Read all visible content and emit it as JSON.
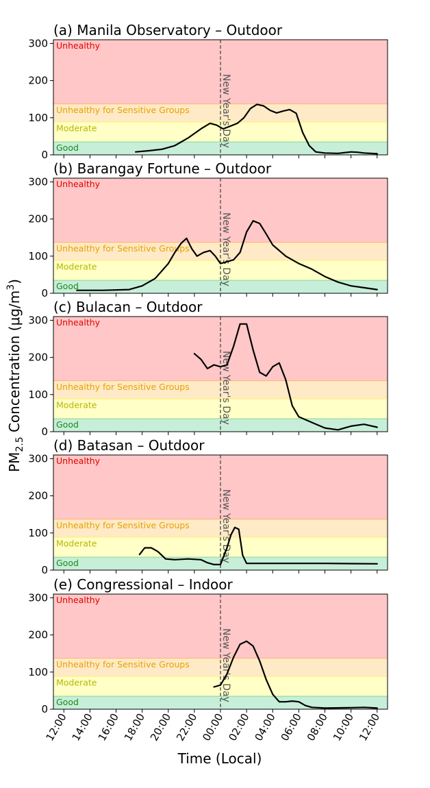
{
  "figure": {
    "ylabel_main": "PM",
    "ylabel_sub": "2.5",
    "ylabel_rest": " Concentration (μg/m",
    "ylabel_sup": "3",
    "ylabel_close": ")",
    "xlabel": "Time (Local)",
    "event_label": "New Year's Day",
    "band_colors": {
      "good": "#00b050",
      "moderate": "#ffff00",
      "usg": "#ffa000",
      "unhealthy": "#ff0000"
    },
    "band_label_colors": {
      "good": "#1a8a1a",
      "moderate": "#b8b800",
      "usg": "#e8a000",
      "unhealthy": "#e00000"
    }
  },
  "chart_data": [
    {
      "type": "line",
      "title": "(a) Manila Observatory – Outdoor",
      "x_unit": "hours since 12:00 (local)",
      "xlim": [
        -0.8,
        24.8
      ],
      "ylim": [
        0,
        310
      ],
      "yticks": [
        "0",
        "100",
        "200",
        "300"
      ],
      "xticks": [
        "12:00",
        "14:00",
        "16:00",
        "18:00",
        "20:00",
        "22:00",
        "00:00",
        "02:00",
        "04:00",
        "06:00",
        "08:00",
        "10:00",
        "12:00"
      ],
      "bands": [
        {
          "label": "Good",
          "from": 0,
          "to": 35
        },
        {
          "label": "Moderate",
          "from": 35,
          "to": 88
        },
        {
          "label": "Unhealthy for Sensitive Groups",
          "from": 88,
          "to": 137
        },
        {
          "label": "Unhealthy",
          "from": 137,
          "to": 310
        }
      ],
      "event_x": 12,
      "series": [
        {
          "points": [
            [
              5.5,
              8
            ],
            [
              6.5,
              11
            ],
            [
              7.5,
              15
            ],
            [
              8.5,
              25
            ],
            [
              9.5,
              45
            ],
            [
              10.5,
              70
            ],
            [
              11.2,
              85
            ],
            [
              11.7,
              80
            ],
            [
              12.2,
              70
            ],
            [
              12.8,
              78
            ],
            [
              13.3,
              85
            ],
            [
              13.8,
              100
            ],
            [
              14.3,
              125
            ],
            [
              14.8,
              136
            ],
            [
              15.3,
              132
            ],
            [
              15.8,
              120
            ],
            [
              16.3,
              113
            ],
            [
              16.8,
              118
            ],
            [
              17.3,
              122
            ],
            [
              17.8,
              112
            ],
            [
              18.3,
              60
            ],
            [
              18.8,
              25
            ],
            [
              19.3,
              8
            ],
            [
              20,
              5
            ],
            [
              21,
              4
            ],
            [
              22,
              8
            ],
            [
              22.5,
              7
            ],
            [
              23,
              5
            ],
            [
              24,
              3
            ]
          ]
        }
      ]
    },
    {
      "type": "line",
      "title": "(b) Barangay Fortune – Outdoor",
      "x_unit": "hours since 12:00 (local)",
      "xlim": [
        -0.8,
        24.8
      ],
      "ylim": [
        0,
        310
      ],
      "yticks": [
        "0",
        "100",
        "200",
        "300"
      ],
      "xticks": [
        "12:00",
        "14:00",
        "16:00",
        "18:00",
        "20:00",
        "22:00",
        "00:00",
        "02:00",
        "04:00",
        "06:00",
        "08:00",
        "10:00",
        "12:00"
      ],
      "bands": [
        {
          "label": "Good",
          "from": 0,
          "to": 35
        },
        {
          "label": "Moderate",
          "from": 35,
          "to": 88
        },
        {
          "label": "Unhealthy for Sensitive Groups",
          "from": 88,
          "to": 137
        },
        {
          "label": "Unhealthy",
          "from": 137,
          "to": 310
        }
      ],
      "event_x": 12,
      "series": [
        {
          "points": [
            [
              1,
              8
            ],
            [
              3,
              8
            ],
            [
              5,
              10
            ],
            [
              6,
              20
            ],
            [
              7,
              40
            ],
            [
              8,
              80
            ],
            [
              8.5,
              110
            ],
            [
              9,
              135
            ],
            [
              9.4,
              148
            ],
            [
              9.8,
              120
            ],
            [
              10.2,
              100
            ],
            [
              10.7,
              110
            ],
            [
              11.2,
              115
            ],
            [
              11.6,
              100
            ],
            [
              12,
              80
            ],
            [
              12.5,
              85
            ],
            [
              13,
              90
            ],
            [
              13.5,
              110
            ],
            [
              14,
              165
            ],
            [
              14.5,
              195
            ],
            [
              15,
              188
            ],
            [
              15.5,
              160
            ],
            [
              16,
              130
            ],
            [
              17,
              100
            ],
            [
              18,
              80
            ],
            [
              19,
              65
            ],
            [
              20,
              45
            ],
            [
              21,
              30
            ],
            [
              22,
              20
            ],
            [
              23,
              15
            ],
            [
              24,
              10
            ]
          ]
        }
      ]
    },
    {
      "type": "line",
      "title": "(c) Bulacan – Outdoor",
      "x_unit": "hours since 12:00 (local)",
      "xlim": [
        -0.8,
        24.8
      ],
      "ylim": [
        0,
        310
      ],
      "yticks": [
        "0",
        "100",
        "200",
        "300"
      ],
      "xticks": [
        "12:00",
        "14:00",
        "16:00",
        "18:00",
        "20:00",
        "22:00",
        "00:00",
        "02:00",
        "04:00",
        "06:00",
        "08:00",
        "10:00",
        "12:00"
      ],
      "bands": [
        {
          "label": "Good",
          "from": 0,
          "to": 35
        },
        {
          "label": "Moderate",
          "from": 35,
          "to": 88
        },
        {
          "label": "Unhealthy for Sensitive Groups",
          "from": 88,
          "to": 137
        },
        {
          "label": "Unhealthy",
          "from": 137,
          "to": 310
        }
      ],
      "event_x": 12,
      "series": [
        {
          "points": [
            [
              10,
              210
            ],
            [
              10.5,
              195
            ],
            [
              11,
              170
            ],
            [
              11.5,
              180
            ],
            [
              12,
              175
            ],
            [
              12.5,
              180
            ],
            [
              13,
              230
            ],
            [
              13.5,
              290
            ],
            [
              14,
              290
            ],
            [
              14.5,
              220
            ],
            [
              15,
              160
            ],
            [
              15.5,
              150
            ],
            [
              16,
              175
            ],
            [
              16.5,
              185
            ],
            [
              17,
              140
            ],
            [
              17.5,
              70
            ],
            [
              18,
              40
            ],
            [
              19,
              25
            ],
            [
              20,
              10
            ],
            [
              21,
              5
            ],
            [
              22,
              15
            ],
            [
              23,
              20
            ],
            [
              24,
              12
            ]
          ]
        }
      ]
    },
    {
      "type": "line",
      "title": "(d) Batasan – Outdoor",
      "x_unit": "hours since 12:00 (local)",
      "xlim": [
        -0.8,
        24.8
      ],
      "ylim": [
        0,
        310
      ],
      "yticks": [
        "0",
        "100",
        "200",
        "300"
      ],
      "xticks": [
        "12:00",
        "14:00",
        "16:00",
        "18:00",
        "20:00",
        "22:00",
        "00:00",
        "02:00",
        "04:00",
        "06:00",
        "08:00",
        "10:00",
        "12:00"
      ],
      "bands": [
        {
          "label": "Good",
          "from": 0,
          "to": 35
        },
        {
          "label": "Moderate",
          "from": 35,
          "to": 88
        },
        {
          "label": "Unhealthy for Sensitive Groups",
          "from": 88,
          "to": 137
        },
        {
          "label": "Unhealthy",
          "from": 137,
          "to": 310
        }
      ],
      "event_x": 12,
      "series": [
        {
          "points": [
            [
              5.8,
              42
            ],
            [
              6.2,
              60
            ],
            [
              6.7,
              60
            ],
            [
              7.2,
              50
            ],
            [
              7.8,
              30
            ],
            [
              8.5,
              28
            ],
            [
              9.5,
              30
            ],
            [
              10.5,
              28
            ],
            [
              11,
              20
            ],
            [
              11.5,
              15
            ],
            [
              12,
              15
            ],
            [
              12.5,
              60
            ],
            [
              12.8,
              95
            ],
            [
              13.1,
              115
            ],
            [
              13.4,
              110
            ],
            [
              13.7,
              40
            ],
            [
              14,
              18
            ],
            [
              16,
              18
            ],
            [
              20,
              18
            ],
            [
              24,
              17
            ]
          ]
        }
      ]
    },
    {
      "type": "line",
      "title": "(e) Congressional – Indoor",
      "x_unit": "hours since 12:00 (local)",
      "xlim": [
        -0.8,
        24.8
      ],
      "ylim": [
        0,
        310
      ],
      "yticks": [
        "0",
        "100",
        "200",
        "300"
      ],
      "xticks": [
        "12:00",
        "14:00",
        "16:00",
        "18:00",
        "20:00",
        "22:00",
        "00:00",
        "02:00",
        "04:00",
        "06:00",
        "08:00",
        "10:00",
        "12:00"
      ],
      "bands": [
        {
          "label": "Good",
          "from": 0,
          "to": 35
        },
        {
          "label": "Moderate",
          "from": 35,
          "to": 88
        },
        {
          "label": "Unhealthy for Sensitive Groups",
          "from": 88,
          "to": 137
        },
        {
          "label": "Unhealthy",
          "from": 137,
          "to": 310
        }
      ],
      "event_x": 12,
      "series": [
        {
          "points": [
            [
              11.5,
              60
            ],
            [
              12,
              65
            ],
            [
              12.5,
              95
            ],
            [
              13,
              140
            ],
            [
              13.5,
              175
            ],
            [
              14,
              183
            ],
            [
              14.5,
              170
            ],
            [
              15,
              130
            ],
            [
              15.5,
              80
            ],
            [
              16,
              40
            ],
            [
              16.5,
              20
            ],
            [
              17,
              20
            ],
            [
              17.5,
              22
            ],
            [
              18,
              20
            ],
            [
              18.5,
              10
            ],
            [
              19,
              5
            ],
            [
              20,
              3
            ],
            [
              22,
              4
            ],
            [
              23,
              5
            ],
            [
              24,
              3
            ]
          ]
        }
      ]
    }
  ]
}
